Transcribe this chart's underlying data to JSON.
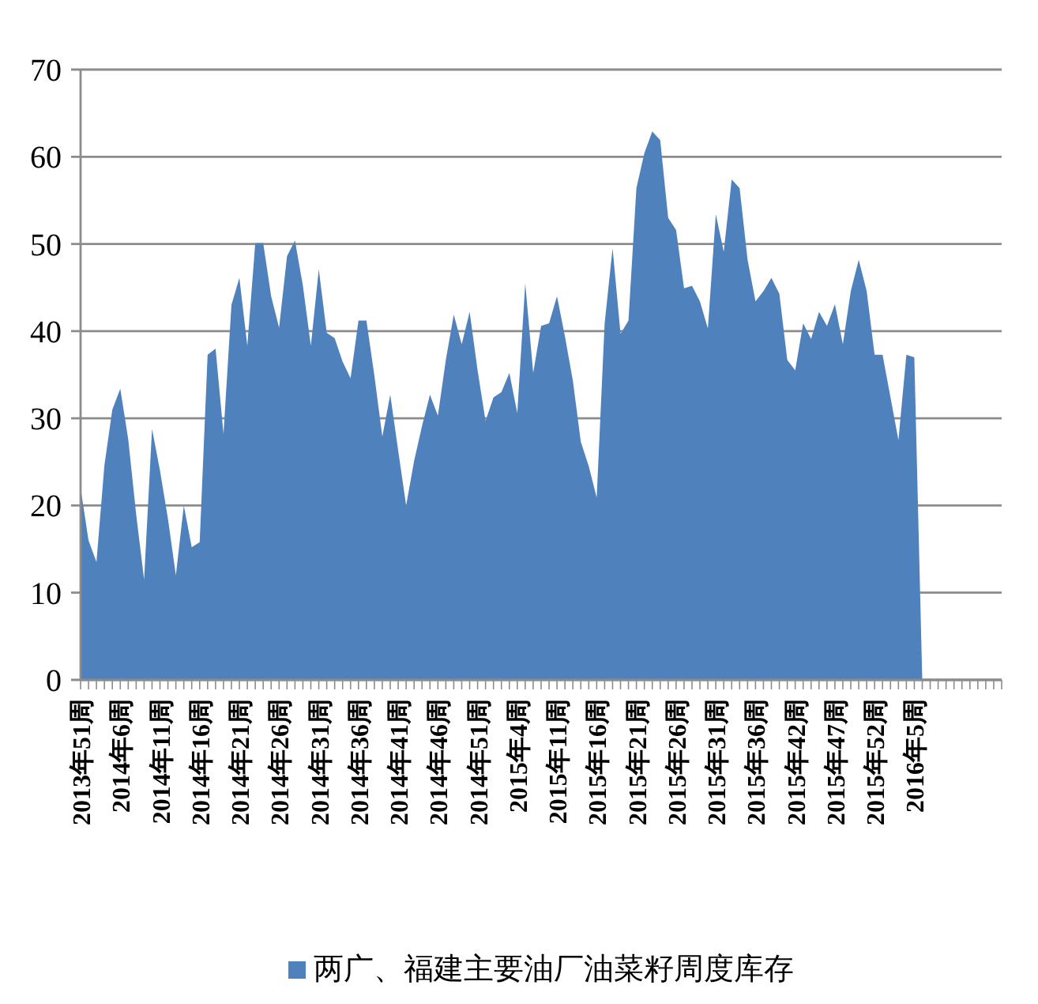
{
  "chart_data": {
    "type": "area",
    "categories": [
      "2013年51周",
      null,
      null,
      null,
      null,
      "2014年6周",
      null,
      null,
      null,
      null,
      "2014年11周",
      null,
      null,
      null,
      null,
      "2014年16周",
      null,
      null,
      null,
      null,
      "2014年21周",
      null,
      null,
      null,
      null,
      "2014年26周",
      null,
      null,
      null,
      null,
      "2014年31周",
      null,
      null,
      null,
      null,
      "2014年36周",
      null,
      null,
      null,
      null,
      "2014年41周",
      null,
      null,
      null,
      null,
      "2014年46周",
      null,
      null,
      null,
      null,
      "2014年51周",
      null,
      null,
      null,
      null,
      "2015年4周",
      null,
      null,
      null,
      null,
      "2015年11周",
      null,
      null,
      null,
      null,
      "2015年16周",
      null,
      null,
      null,
      null,
      "2015年21周",
      null,
      null,
      null,
      null,
      "2015年26周",
      null,
      null,
      null,
      null,
      "2015年31周",
      null,
      null,
      null,
      null,
      "2015年36周",
      null,
      null,
      null,
      null,
      "2015年42周",
      null,
      null,
      null,
      null,
      "2015年47周",
      null,
      null,
      null,
      null,
      "2015年52周",
      null,
      null,
      null,
      null,
      "2016年5周",
      null,
      null,
      null,
      null,
      null,
      null,
      null,
      null,
      null,
      null,
      null
    ],
    "series": [
      {
        "name": "两广、福建主要油厂油菜籽周度库存",
        "color": "#4f81bd",
        "values": [
          22,
          16,
          13.5,
          24.6,
          31,
          33.4,
          27.6,
          19,
          11.5,
          28.8,
          24,
          18.5,
          12,
          20,
          15.2,
          15.8,
          37.3,
          38,
          28.2,
          43,
          46.1,
          38.3,
          50.1,
          50.1,
          44,
          40.4,
          48.6,
          50.4,
          45.2,
          38.3,
          47.1,
          39.8,
          39.2,
          36.5,
          34.6,
          41.2,
          41.2,
          34.9,
          27.9,
          32.7,
          26.3,
          20,
          25.1,
          29.1,
          32.7,
          30.3,
          36.7,
          41.9,
          38.5,
          42.2,
          35.5,
          29.7,
          32.4,
          33,
          35.2,
          30.6,
          45.5,
          35.2,
          40.6,
          40.9,
          44,
          39.4,
          34.3,
          27.3,
          24.5,
          20.9,
          40.9,
          49.5,
          39.7,
          41.2,
          56.4,
          60.4,
          62.9,
          61.9,
          53,
          51.6,
          44.9,
          45.2,
          43.4,
          40.3,
          53.4,
          49.1,
          57.4,
          56.4,
          48.2,
          43.4,
          44.6,
          46.1,
          44.3,
          36.7,
          35.5,
          40.9,
          39.1,
          42.2,
          40.6,
          43.1,
          38.5,
          44.6,
          48.2,
          44.6,
          37.3,
          37.3,
          32.4,
          27.5,
          37.3,
          37,
          0,
          null,
          null,
          null,
          null,
          null,
          null,
          null,
          null,
          null,
          null
        ]
      }
    ],
    "ylim": [
      0,
      70
    ],
    "yticks": [
      0,
      10,
      20,
      30,
      40,
      50,
      60,
      70
    ],
    "grid": "y",
    "legend": "bottom"
  }
}
